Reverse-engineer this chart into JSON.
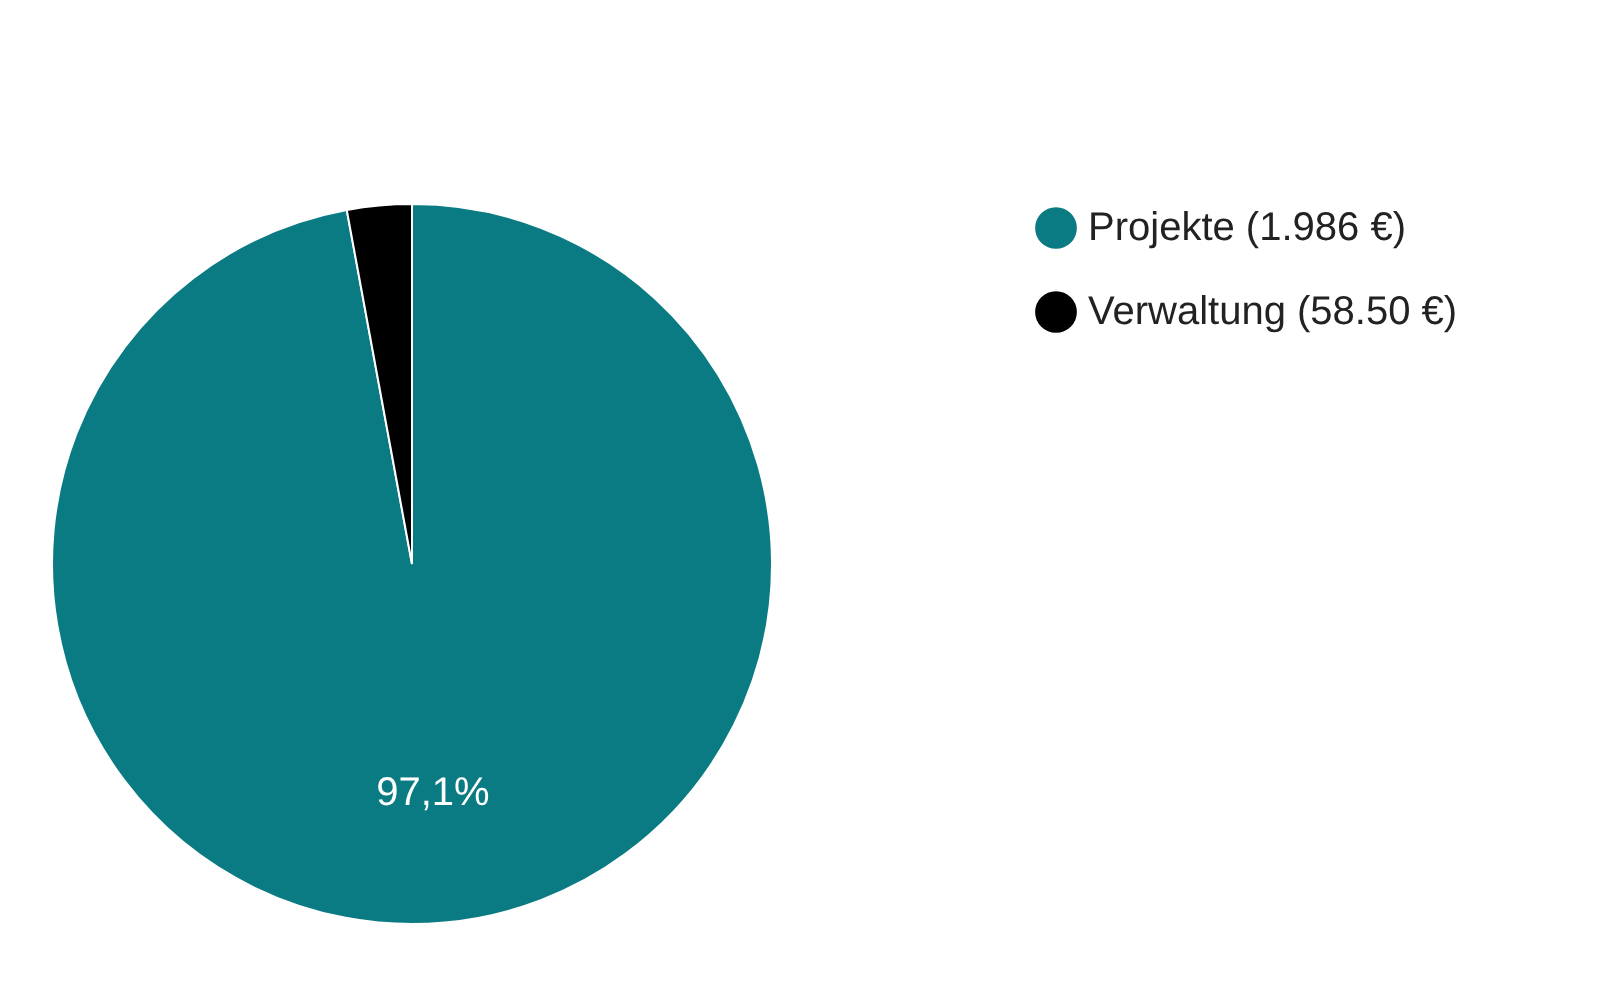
{
  "chart_data": {
    "type": "pie",
    "categories": [
      "Projekte (1.986 €)",
      "Verwaltung (58.50 €)"
    ],
    "values": [
      97.1,
      2.9
    ],
    "colors": [
      "#0a7b83",
      "#000000"
    ],
    "value_labels": [
      "97,1%",
      null
    ],
    "legend": "right"
  }
}
